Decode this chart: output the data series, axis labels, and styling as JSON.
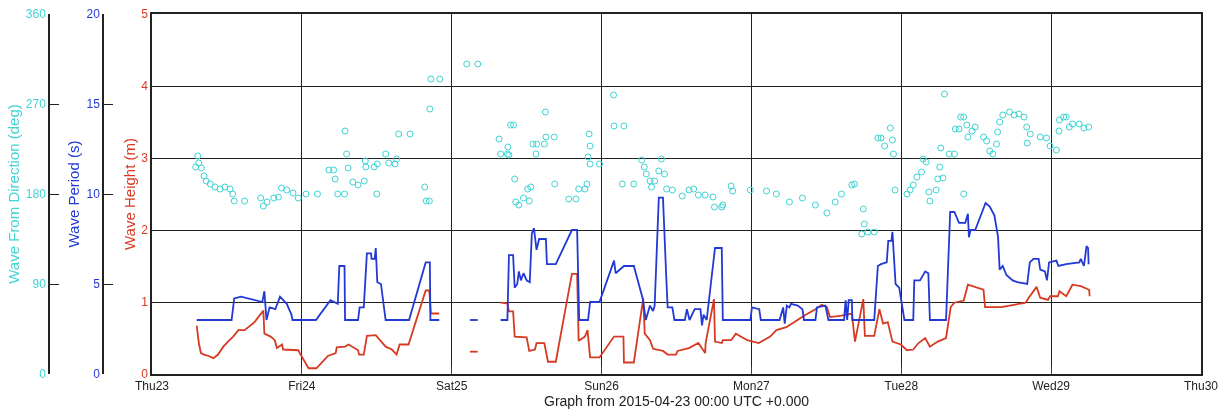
{
  "chart_data": {
    "type": "line",
    "xlabel": "Graph from 2015-04-23 00:00 UTC +0.000",
    "ylabel": "Wave Height (m)",
    "y2label": "Wave Period (s)",
    "y3label": "Wave From Direction (deg)",
    "xlim": [
      "2015-04-23",
      "2015-04-30"
    ],
    "xticks": [
      {
        "value": "2015-04-23",
        "label": "Thu23"
      },
      {
        "value": "2015-04-24",
        "label": "Fri24"
      },
      {
        "value": "2015-04-25",
        "label": "Sat25"
      },
      {
        "value": "2015-04-26",
        "label": "Sun26"
      },
      {
        "value": "2015-04-27",
        "label": "Mon27"
      },
      {
        "value": "2015-04-28",
        "label": "Tue28"
      },
      {
        "value": "2015-04-29",
        "label": "Wed29"
      },
      {
        "value": "2015-04-30",
        "label": "Thu30"
      }
    ],
    "ylim": [
      0,
      5
    ],
    "yticks": [
      0,
      1,
      2,
      3,
      4,
      5
    ],
    "y2lim": [
      0,
      20
    ],
    "y2ticks": [
      0,
      5,
      10,
      15,
      20
    ],
    "y3lim": [
      0,
      360
    ],
    "y3ticks": [
      0,
      90,
      180,
      270,
      360
    ],
    "grid": true,
    "series": [
      {
        "type": "scatter",
        "axis": "y3",
        "color": "#3fd4d4",
        "marker": "circle",
        "x": [
          "2015-04-23T07:00",
          "2015-04-23T07:20",
          "2015-04-23T07:30",
          "2015-04-23T07:55",
          "2015-04-23T08:20",
          "2015-04-23T08:40",
          "2015-04-23T09:20",
          "2015-04-23T10:05",
          "2015-04-23T10:55",
          "2015-04-23T11:40",
          "2015-04-23T12:30",
          "2015-04-23T12:55",
          "2015-04-23T13:10",
          "2015-04-23T14:50",
          "2015-04-23T17:25",
          "2015-04-23T17:50",
          "2015-04-23T18:25",
          "2015-04-23T19:30",
          "2015-04-23T20:15",
          "2015-04-23T20:45",
          "2015-04-23T21:35",
          "2015-04-23T22:35",
          "2015-04-23T23:25",
          "2015-04-24T00:40",
          "2015-04-24T02:30",
          "2015-04-24T04:20",
          "2015-04-24T05:05",
          "2015-04-24T05:20",
          "2015-04-24T05:45",
          "2015-04-24T06:50",
          "2015-04-24T06:55",
          "2015-04-24T07:10",
          "2015-04-24T07:25",
          "2015-04-24T08:10",
          "2015-04-24T09:00",
          "2015-04-24T10:00",
          "2015-04-24T10:10",
          "2015-04-24T10:15",
          "2015-04-24T11:35",
          "2015-04-24T12:00",
          "2015-04-24T12:05",
          "2015-04-24T13:25",
          "2015-04-24T13:55",
          "2015-04-24T14:55",
          "2015-04-24T15:10",
          "2015-04-24T15:30",
          "2015-04-24T17:20",
          "2015-04-24T19:40",
          "2015-04-24T19:55",
          "2015-04-24T20:25",
          "2015-04-24T20:30",
          "2015-04-24T20:40",
          "2015-04-24T22:05",
          "2015-04-25T02:25",
          "2015-04-25T04:10",
          "2015-04-25T07:35",
          "2015-04-25T07:50",
          "2015-04-25T08:55",
          "2015-04-25T09:00",
          "2015-04-25T09:10",
          "2015-04-25T09:25",
          "2015-04-25T09:55",
          "2015-04-25T10:05",
          "2015-04-25T10:15",
          "2015-04-25T10:45",
          "2015-04-25T11:30",
          "2015-04-25T12:10",
          "2015-04-25T12:25",
          "2015-04-25T12:40",
          "2015-04-25T13:00",
          "2015-04-25T13:30",
          "2015-04-25T13:35",
          "2015-04-25T14:50",
          "2015-04-25T15:00",
          "2015-04-25T15:05",
          "2015-04-25T16:25",
          "2015-04-25T16:30",
          "2015-04-25T18:45",
          "2015-04-25T19:55",
          "2015-04-25T20:20",
          "2015-04-25T21:20",
          "2015-04-25T21:40",
          "2015-04-25T21:50",
          "2015-04-25T22:00",
          "2015-04-25T22:10",
          "2015-04-25T22:10",
          "2015-04-25T23:40",
          "2015-04-26T01:55",
          "2015-04-26T02:00",
          "2015-04-26T03:35",
          "2015-04-26T03:20",
          "2015-04-26T05:10",
          "2015-04-26T06:25",
          "2015-04-26T06:50",
          "2015-04-26T07:10",
          "2015-04-26T07:45",
          "2015-04-26T08:00",
          "2015-04-26T08:30",
          "2015-04-26T09:10",
          "2015-04-26T09:35",
          "2015-04-26T10:05",
          "2015-04-26T10:25",
          "2015-04-26T11:20",
          "2015-04-26T12:55",
          "2015-04-26T14:00",
          "2015-04-26T14:45",
          "2015-04-26T15:30",
          "2015-04-26T16:35",
          "2015-04-26T17:50",
          "2015-04-26T18:05",
          "2015-04-26T19:15",
          "2015-04-26T19:25",
          "2015-04-26T20:45",
          "2015-04-26T21:00",
          "2015-04-26T23:50",
          "2015-04-27T02:25",
          "2015-04-27T04:00",
          "2015-04-27T06:05",
          "2015-04-27T08:10",
          "2015-04-27T10:15",
          "2015-04-27T12:05",
          "2015-04-27T13:25",
          "2015-04-27T14:25",
          "2015-04-27T16:05",
          "2015-04-27T16:30",
          "2015-04-27T17:40",
          "2015-04-27T17:55",
          "2015-04-27T18:05",
          "2015-04-27T18:40",
          "2015-04-27T19:40",
          "2015-04-27T20:15",
          "2015-04-27T20:45",
          "2015-04-27T21:20",
          "2015-04-27T22:15",
          "2015-04-27T22:35",
          "2015-04-27T22:45",
          "2015-04-27T23:00",
          "2015-04-28T00:55",
          "2015-04-28T01:25",
          "2015-04-28T01:55",
          "2015-04-28T02:30",
          "2015-04-28T03:15",
          "2015-04-28T03:30",
          "2015-04-28T04:00",
          "2015-04-28T04:25",
          "2015-04-28T04:35",
          "2015-04-28T05:35",
          "2015-04-28T05:50",
          "2015-04-28T06:10",
          "2015-04-28T06:20",
          "2015-04-28T06:40",
          "2015-04-28T06:55",
          "2015-04-28T07:40",
          "2015-04-28T08:30",
          "2015-04-28T08:40",
          "2015-04-28T09:15",
          "2015-04-28T09:30",
          "2015-04-28T10:00",
          "2015-04-28T10:00",
          "2015-04-28T10:30",
          "2015-04-28T10:40",
          "2015-04-28T11:20",
          "2015-04-28T11:50",
          "2015-04-28T13:10",
          "2015-04-28T13:40",
          "2015-04-28T14:10",
          "2015-04-28T14:40",
          "2015-04-28T15:15",
          "2015-04-28T15:25",
          "2015-04-28T15:45",
          "2015-04-28T16:15",
          "2015-04-28T17:20",
          "2015-04-28T18:05",
          "2015-04-28T18:50",
          "2015-04-28T19:40",
          "2015-04-28T20:05",
          "2015-04-28T20:10",
          "2015-04-28T20:40",
          "2015-04-28T22:15",
          "2015-04-28T23:15",
          "2015-04-28T23:50",
          "2015-04-29T00:50",
          "2015-04-29T01:15",
          "2015-04-29T01:20",
          "2015-04-29T02:00",
          "2015-04-29T02:25",
          "2015-04-29T02:55",
          "2015-04-29T03:25",
          "2015-04-29T04:30",
          "2015-04-29T05:15",
          "2015-04-29T06:00"
        ],
        "values": [
          207,
          218,
          211,
          206,
          198,
          193,
          190,
          187,
          185,
          187,
          185,
          180,
          173,
          173,
          176,
          168,
          172,
          176,
          177,
          186,
          184,
          181,
          176,
          180,
          180,
          204,
          204,
          195,
          180,
          180,
          243,
          220,
          206,
          192,
          189,
          193,
          213,
          207,
          207,
          180,
          210,
          220,
          211,
          210,
          215,
          240,
          240,
          187,
          173,
          173,
          265,
          295,
          295,
          310,
          310,
          235,
          220,
          220,
          227,
          219,
          249,
          249,
          195,
          172,
          169,
          176,
          185,
          173,
          187,
          230,
          220,
          230,
          230,
          262,
          237,
          237,
          190,
          175,
          175,
          185,
          185,
          190,
          217,
          240,
          228,
          210,
          210,
          279,
          248,
          248,
          190,
          190,
          214,
          207,
          200,
          193,
          187,
          193,
          203,
          215,
          200,
          185,
          184,
          178,
          184,
          185,
          179,
          179,
          177,
          167,
          167,
          169,
          188,
          183,
          184,
          183,
          180,
          172,
          176,
          169,
          161,
          172,
          180,
          189,
          190,
          140,
          165,
          150,
          142,
          142,
          236,
          236,
          228,
          246,
          234,
          220,
          184,
          180,
          184,
          189,
          197,
          202,
          215,
          212,
          182,
          173,
          184,
          195,
          207,
          226,
          196,
          280,
          220,
          220,
          245,
          245,
          257,
          257,
          180,
          249,
          237,
          243,
          247,
          237,
          233,
          223,
          220,
          230,
          242,
          252,
          259,
          262,
          259,
          260,
          257,
          247,
          231,
          240,
          237,
          236,
          228,
          224,
          243,
          254,
          257,
          257,
          247,
          250,
          250,
          246,
          247
        ]
      },
      {
        "axis": "y2",
        "color": "#2239d4",
        "x": [
          "2015-04-23T07:10",
          "2015-04-23T12:45",
          "2015-04-23T13:10",
          "2015-04-23T14:15",
          "2015-04-23T17:40",
          "2015-04-23T18:00",
          "2015-04-23T18:20",
          "2015-04-23T18:50",
          "2015-04-23T19:45",
          "2015-04-23T20:30",
          "2015-04-23T21:35",
          "2015-04-23T22:20",
          "2015-04-23T22:30",
          "2015-04-24T02:15",
          "2015-04-24T04:35",
          "2015-04-24T05:45",
          "2015-04-24T06:00",
          "2015-04-24T06:50",
          "2015-04-24T06:55",
          "2015-04-24T09:00",
          "2015-04-24T09:15",
          "2015-04-24T09:55",
          "2015-04-24T10:25",
          "2015-04-24T11:05",
          "2015-04-24T11:10",
          "2015-04-24T11:40",
          "2015-04-24T11:50",
          "2015-04-24T12:05",
          "2015-04-24T12:40",
          "2015-04-24T13:25",
          "2015-04-24T17:10",
          "2015-04-24T19:50",
          "2015-04-24T20:30",
          "2015-04-24T20:35",
          "2015-04-24T22:00",
          "2015-04-25T00:00",
          "2015-04-25T02:55",
          "2015-04-25T04:10",
          "2015-04-25T06:00",
          "2015-04-25T07:50",
          "2015-04-25T08:55",
          "2015-04-25T09:10",
          "2015-04-25T09:50",
          "2015-04-25T10:05",
          "2015-04-25T10:30",
          "2015-04-25T10:45",
          "2015-04-25T11:05",
          "2015-04-25T11:30",
          "2015-04-25T12:00",
          "2015-04-25T12:30",
          "2015-04-25T12:50",
          "2015-04-25T13:10",
          "2015-04-25T13:35",
          "2015-04-25T14:00",
          "2015-04-25T15:05",
          "2015-04-25T15:15",
          "2015-04-25T16:40",
          "2015-04-25T19:15",
          "2015-04-25T20:05",
          "2015-04-25T20:25",
          "2015-04-25T21:50",
          "2015-04-25T22:10",
          "2015-04-25T23:40",
          "2015-04-26T02:00",
          "2015-04-26T02:15",
          "2015-04-26T03:35",
          "2015-04-26T05:10",
          "2015-04-26T06:35",
          "2015-04-26T07:05",
          "2015-04-26T07:45",
          "2015-04-26T08:15",
          "2015-04-26T08:30",
          "2015-04-26T09:10",
          "2015-04-26T09:50",
          "2015-04-26T10:20",
          "2015-04-26T10:35",
          "2015-04-26T11:20",
          "2015-04-26T11:40",
          "2015-04-26T13:20",
          "2015-04-26T13:40",
          "2015-04-26T14:05",
          "2015-04-26T14:55",
          "2015-04-26T15:50",
          "2015-04-26T16:05",
          "2015-04-26T16:20",
          "2015-04-26T16:50",
          "2015-04-26T18:10",
          "2015-04-26T19:15",
          "2015-04-26T19:25",
          "2015-04-26T23:50",
          "2015-04-27T00:05",
          "2015-04-27T01:15",
          "2015-04-27T01:30",
          "2015-04-27T04:30",
          "2015-04-27T05:05",
          "2015-04-27T05:20",
          "2015-04-27T05:40",
          "2015-04-27T06:05",
          "2015-04-27T06:20",
          "2015-04-27T07:25",
          "2015-04-27T08:10",
          "2015-04-27T08:25",
          "2015-04-27T10:15",
          "2015-04-27T10:30",
          "2015-04-27T11:50",
          "2015-04-27T12:20",
          "2015-04-27T14:50",
          "2015-04-27T15:05",
          "2015-04-27T15:20",
          "2015-04-27T15:35",
          "2015-04-27T16:05",
          "2015-04-27T16:10",
          "2015-04-27T19:40",
          "2015-04-27T20:15",
          "2015-04-27T20:45",
          "2015-04-27T21:40",
          "2015-04-27T21:55",
          "2015-04-27T22:25",
          "2015-04-27T22:35",
          "2015-04-27T23:05",
          "2015-04-27T23:40",
          "2015-04-28T00:30",
          "2015-04-28T01:55",
          "2015-04-28T02:05",
          "2015-04-28T03:00",
          "2015-04-28T03:50",
          "2015-04-28T04:20",
          "2015-04-28T04:35",
          "2015-04-28T07:10",
          "2015-04-28T07:50",
          "2015-04-28T08:30",
          "2015-04-28T09:15",
          "2015-04-28T10:15",
          "2015-04-28T10:40",
          "2015-04-28T10:50",
          "2015-04-28T11:05",
          "2015-04-28T11:50",
          "2015-04-28T13:30",
          "2015-04-28T14:10",
          "2015-04-28T14:55",
          "2015-04-28T15:30",
          "2015-04-28T15:45",
          "2015-04-28T16:15",
          "2015-04-28T16:50",
          "2015-04-28T17:50",
          "2015-04-28T18:35",
          "2015-04-28T20:10",
          "2015-04-28T20:35",
          "2015-04-28T21:10",
          "2015-04-28T22:00",
          "2015-04-28T22:15",
          "2015-04-28T23:00",
          "2015-04-28T23:20",
          "2015-04-28T23:40",
          "2015-04-29T00:50",
          "2015-04-29T01:10",
          "2015-04-29T02:25",
          "2015-04-29T04:30",
          "2015-04-29T04:45",
          "2015-04-29T05:15",
          "2015-04-29T05:40",
          "2015-04-29T05:55",
          "2015-04-29T06:00"
        ],
        "values": [
          3.0,
          3.0,
          4.2,
          4.3,
          4.0,
          4.6,
          3.0,
          3.7,
          3.6,
          4.3,
          3.9,
          3.3,
          3.0,
          3.0,
          4.1,
          3.9,
          6.0,
          6.0,
          3.0,
          3.0,
          3.7,
          3.7,
          6.7,
          6.7,
          6.4,
          6.4,
          7.0,
          5.1,
          5.0,
          3.0,
          3.0,
          6.2,
          6.2,
          3.0,
          3.0,
          null,
          3.0,
          3.0,
          null,
          3.0,
          3.0,
          6.6,
          6.6,
          4.8,
          5.0,
          5.7,
          5.2,
          5.6,
          5.2,
          5.1,
          7.8,
          8.1,
          6.9,
          7.5,
          7.5,
          6.1,
          6.1,
          8.0,
          8.0,
          3.0,
          3.0,
          4.0,
          4.0,
          6.3,
          5.6,
          6.0,
          6.0,
          4.2,
          3.0,
          3.8,
          3.5,
          3.8,
          9.8,
          9.8,
          5.6,
          3.7,
          3.7,
          3.0,
          3.0,
          3.6,
          3.0,
          3.6,
          3.6,
          2.7,
          3.3,
          3.0,
          7.0,
          7.0,
          3.0,
          3.0,
          3.7,
          3.6,
          3.0,
          3.0,
          3.7,
          2.8,
          3.8,
          3.7,
          3.9,
          3.8,
          3.6,
          3.0,
          3.0,
          3.7,
          3.8,
          3.0,
          3.0,
          4.1,
          3.0,
          4.1,
          4.1,
          3.0,
          3.0,
          6.0,
          6.1,
          6.2,
          7.4,
          7.4,
          7.9,
          5.0,
          4.8,
          3.0,
          3.0,
          5.2,
          5.2,
          5.7,
          5.6,
          3.0,
          3.0,
          9.0,
          9.0,
          8.4,
          8.4,
          8.9,
          7.6,
          8.0,
          8.0,
          9.5,
          9.3,
          8.8,
          7.6,
          5.8,
          6.0,
          5.5,
          5.2,
          5.1,
          5.0,
          6.2,
          6.4,
          6.4,
          5.8,
          5.7,
          5.2,
          6.2,
          6.3,
          6.0,
          6.1,
          6.2,
          6.4,
          6.0,
          7.1,
          7.0,
          6.1
        ]
      },
      {
        "axis": "y",
        "color": "#d63a22",
        "x": [
          "2015-04-23T07:10",
          "2015-04-23T07:30",
          "2015-04-23T07:50",
          "2015-04-23T08:20",
          "2015-04-23T09:05",
          "2015-04-23T09:50",
          "2015-04-23T10:35",
          "2015-04-23T11:25",
          "2015-04-23T12:10",
          "2015-04-23T13:00",
          "2015-04-23T13:50",
          "2015-04-23T14:50",
          "2015-04-23T16:25",
          "2015-04-23T17:50",
          "2015-04-23T18:00",
          "2015-04-23T19:00",
          "2015-04-23T19:40",
          "2015-04-23T20:00",
          "2015-04-23T20:50",
          "2015-04-23T21:00",
          "2015-04-23T23:25",
          "2015-04-23T23:40",
          "2015-04-24T01:05",
          "2015-04-24T02:20",
          "2015-04-24T04:10",
          "2015-04-24T05:25",
          "2015-04-24T05:35",
          "2015-04-24T06:55",
          "2015-04-24T07:30",
          "2015-04-24T09:00",
          "2015-04-24T09:10",
          "2015-04-24T09:55",
          "2015-04-24T10:25",
          "2015-04-24T11:50",
          "2015-04-24T13:25",
          "2015-04-24T14:25",
          "2015-04-24T15:10",
          "2015-04-24T15:40",
          "2015-04-24T17:05",
          "2015-04-24T19:50",
          "2015-04-24T20:25",
          "2015-04-24T20:40",
          "2015-04-24T22:00",
          "2015-04-25T00:00",
          "2015-04-25T02:55",
          "2015-04-25T04:10",
          "2015-04-25T06:00",
          "2015-04-25T07:50",
          "2015-04-25T08:55",
          "2015-04-25T09:10",
          "2015-04-25T09:50",
          "2015-04-25T10:05",
          "2015-04-25T12:00",
          "2015-04-25T12:25",
          "2015-04-25T13:20",
          "2015-04-25T13:35",
          "2015-04-25T14:50",
          "2015-04-25T15:25",
          "2015-04-25T16:40",
          "2015-04-25T19:15",
          "2015-04-25T20:05",
          "2015-04-25T20:20",
          "2015-04-25T21:20",
          "2015-04-25T21:45",
          "2015-04-25T22:10",
          "2015-04-25T23:40",
          "2015-04-26T02:00",
          "2015-04-26T03:30",
          "2015-04-26T03:35",
          "2015-04-26T05:10",
          "2015-04-26T06:40",
          "2015-04-26T06:55",
          "2015-04-26T07:45",
          "2015-04-26T08:15",
          "2015-04-26T09:50",
          "2015-04-26T10:35",
          "2015-04-26T11:55",
          "2015-04-26T12:10",
          "2015-04-26T14:00",
          "2015-04-26T15:30",
          "2015-04-26T16:35",
          "2015-04-26T16:40",
          "2015-04-26T18:00",
          "2015-04-26T18:10",
          "2015-04-26T19:15",
          "2015-04-26T19:25",
          "2015-04-26T20:45",
          "2015-04-26T21:30",
          "2015-04-26T23:20",
          "2015-04-27T01:10",
          "2015-04-27T03:00",
          "2015-04-27T04:00",
          "2015-04-27T05:35",
          "2015-04-27T06:50",
          "2015-04-27T08:25",
          "2015-04-27T10:15",
          "2015-04-27T11:15",
          "2015-04-27T12:05",
          "2015-04-27T12:35",
          "2015-04-27T14:25",
          "2015-04-27T16:05",
          "2015-04-27T16:35",
          "2015-04-27T17:55",
          "2015-04-27T18:10",
          "2015-04-27T19:40",
          "2015-04-27T20:30",
          "2015-04-27T21:05",
          "2015-04-27T21:50",
          "2015-04-27T22:35",
          "2015-04-27T23:55",
          "2015-04-28T00:55",
          "2015-04-28T01:55",
          "2015-04-28T02:45",
          "2015-04-28T03:50",
          "2015-04-28T04:35",
          "2015-04-28T05:50",
          "2015-04-28T07:10",
          "2015-04-28T07:55",
          "2015-04-28T08:30",
          "2015-04-28T10:00",
          "2015-04-28T10:40",
          "2015-04-28T13:10",
          "2015-04-28T13:25",
          "2015-04-28T16:00",
          "2015-04-28T19:55",
          "2015-04-28T20:25",
          "2015-04-28T21:40",
          "2015-04-28T22:15",
          "2015-04-28T23:30",
          "2015-04-28T23:50",
          "2015-04-29T01:05",
          "2015-04-29T01:20",
          "2015-04-29T02:25",
          "2015-04-29T03:25",
          "2015-04-29T04:45",
          "2015-04-29T06:05",
          "2015-04-29T06:10"
        ],
        "values": [
          0.67,
          0.43,
          0.29,
          0.27,
          0.25,
          0.22,
          0.27,
          0.38,
          0.45,
          0.52,
          0.61,
          0.61,
          0.72,
          0.88,
          0.56,
          0.52,
          0.47,
          0.36,
          0.41,
          0.34,
          0.33,
          0.29,
          0.08,
          0.08,
          0.25,
          0.29,
          0.37,
          0.38,
          0.41,
          0.33,
          0.27,
          0.27,
          0.53,
          0.54,
          0.38,
          0.34,
          0.27,
          0.41,
          0.41,
          1.16,
          1.16,
          0.84,
          0.84,
          null,
          0.31,
          0.31,
          null,
          0.99,
          0.98,
          0.87,
          0.87,
          0.52,
          0.51,
          0.32,
          0.34,
          0.43,
          0.43,
          0.17,
          0.17,
          1.39,
          1.39,
          0.46,
          0.52,
          0.61,
          0.23,
          0.23,
          0.52,
          0.52,
          0.16,
          0.16,
          1.05,
          0.56,
          0.47,
          0.35,
          0.32,
          0.27,
          0.27,
          0.32,
          0.36,
          0.43,
          0.29,
          0.43,
          1.04,
          0.45,
          0.43,
          0.47,
          0.47,
          0.56,
          0.47,
          0.43,
          0.52,
          0.61,
          0.65,
          0.72,
          0.81,
          0.9,
          0.96,
          0.93,
          0.79,
          0.81,
          0.84,
          0.45,
          1.04,
          0.53,
          0.53,
          0.9,
          0.7,
          0.72,
          0.45,
          0.41,
          0.33,
          0.34,
          0.43,
          0.5,
          0.38,
          0.45,
          0.5,
          0.93,
          0.99,
          1.02,
          1.24,
          1.17,
          0.93,
          0.93,
          0.99,
          1.06,
          1.21,
          1.06,
          1.03,
          1.08,
          1.08,
          1.15,
          1.08,
          1.24,
          1.22,
          1.17,
          1.08
        ]
      }
    ]
  }
}
